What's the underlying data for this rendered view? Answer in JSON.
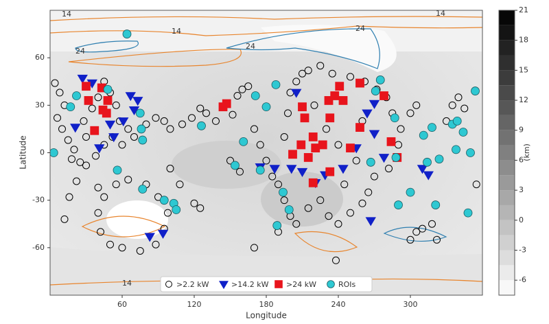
{
  "chart_data": {
    "type": "scatter",
    "xlabel": "Longitude",
    "ylabel": "Latitude",
    "xlim": [
      0,
      360
    ],
    "ylim": [
      -90,
      90
    ],
    "xticks": [
      60,
      120,
      180,
      240,
      300
    ],
    "yticks": [
      -60,
      -30,
      0,
      30,
      60
    ],
    "colorbar": {
      "label": "(km)",
      "lim": [
        -7.5,
        21
      ],
      "ticks": [
        -6,
        -3,
        0,
        3,
        6,
        9,
        12,
        15,
        18,
        21
      ]
    },
    "contours": [
      {
        "level": 14,
        "color": "#e8842c"
      },
      {
        "level": 24,
        "color": "#2f7fb0"
      }
    ],
    "legend": "lower center",
    "series": [
      {
        "name": ">2.2 kW",
        "color": "#000000",
        "marker": "circle",
        "filled": false,
        "x": [
          4,
          8,
          12,
          6,
          10,
          15,
          20,
          18,
          25,
          30,
          28,
          35,
          40,
          45,
          50,
          55,
          58,
          52,
          45,
          38,
          30,
          22,
          16,
          12,
          60,
          65,
          70,
          80,
          88,
          95,
          100,
          110,
          118,
          125,
          130,
          138,
          152,
          156,
          160,
          165,
          150,
          158,
          100,
          108,
          120,
          125,
          40,
          45,
          40,
          42,
          50,
          60,
          75,
          88,
          95,
          98,
          90,
          80,
          65,
          55,
          170,
          175,
          180,
          185,
          190,
          195,
          200,
          205,
          215,
          225,
          232,
          240,
          250,
          260,
          265,
          245,
          195,
          198,
          200,
          205,
          210,
          215,
          225,
          235,
          250,
          262,
          272,
          280,
          285,
          292,
          290,
          282,
          270,
          255,
          240,
          230,
          220,
          260,
          300,
          305,
          310,
          318,
          322,
          335,
          340,
          345,
          330,
          355,
          190,
          170,
          238,
          300,
          305
        ],
        "y": [
          44,
          38,
          30,
          22,
          15,
          8,
          2,
          -4,
          -6,
          10,
          20,
          28,
          35,
          45,
          38,
          30,
          20,
          10,
          5,
          -2,
          -8,
          -18,
          -28,
          -42,
          5,
          15,
          10,
          18,
          22,
          20,
          15,
          18,
          22,
          28,
          25,
          20,
          24,
          36,
          40,
          42,
          -5,
          -12,
          -10,
          -20,
          -32,
          -35,
          -22,
          -28,
          -38,
          -50,
          -58,
          -60,
          -62,
          -58,
          -48,
          -38,
          -28,
          -20,
          -17,
          -20,
          15,
          5,
          -5,
          -15,
          -20,
          -30,
          -40,
          -45,
          -35,
          -30,
          -40,
          -45,
          -38,
          -32,
          -25,
          -20,
          10,
          25,
          38,
          45,
          50,
          52,
          55,
          50,
          48,
          45,
          40,
          35,
          25,
          15,
          5,
          -10,
          -15,
          -5,
          5,
          15,
          30,
          20,
          -55,
          -50,
          -48,
          -45,
          -55,
          30,
          35,
          28,
          20,
          -20,
          -50,
          -60,
          -68,
          25,
          30
        ]
      },
      {
        "name": ">14.2 kW",
        "color": "#1020c8",
        "marker": "triangle",
        "filled": true,
        "x": [
          27,
          35,
          21,
          41,
          61,
          67,
          73,
          70,
          50,
          53,
          83,
          94,
          175,
          187,
          201,
          210,
          221,
          229,
          244,
          255,
          270,
          264,
          270,
          278,
          267,
          315,
          310,
          205
        ],
        "y": [
          47,
          44,
          16,
          3,
          20,
          36,
          33,
          27,
          18,
          10,
          -53,
          -51,
          -9,
          -10,
          -10,
          -12,
          -19,
          -14,
          -10,
          3,
          31,
          25,
          12,
          -3,
          -43,
          -14,
          -10,
          38
        ]
      },
      {
        "name": ">24 kW",
        "color": "#e8141c",
        "marker": "square",
        "filled": true,
        "x": [
          30,
          32,
          43,
          44,
          47,
          48,
          37,
          144,
          147,
          210,
          212,
          219,
          215,
          221,
          227,
          232,
          241,
          244,
          258,
          250,
          258,
          233,
          219,
          278,
          284,
          289,
          233,
          237,
          202,
          209
        ],
        "y": [
          42,
          33,
          41,
          27,
          25,
          33,
          14,
          29,
          31,
          29,
          22,
          10,
          -3,
          3,
          5,
          33,
          42,
          33,
          44,
          3,
          16,
          -12,
          -19,
          36,
          7,
          -3,
          22,
          36,
          -1,
          5
        ]
      },
      {
        "name": "ROIs",
        "color": "#2ec8d2",
        "marker": "circle",
        "filled": true,
        "x": [
          3,
          17,
          22,
          48,
          64,
          75,
          76,
          77,
          56,
          77,
          95,
          103,
          105,
          126,
          161,
          154,
          171,
          180,
          175,
          188,
          194,
          199,
          189,
          271,
          287,
          267,
          288,
          300,
          290,
          311,
          314,
          324,
          321,
          318,
          335,
          339,
          354,
          348,
          338,
          350,
          344,
          275
        ],
        "y": [
          0,
          29,
          36,
          40,
          75,
          25,
          15,
          8,
          -11,
          -23,
          -30,
          -32,
          -36,
          17,
          7,
          -8,
          36,
          29,
          -11,
          43,
          -25,
          -36,
          -46,
          39,
          22,
          -6,
          -3,
          -25,
          -33,
          11,
          -6,
          -4,
          -33,
          16,
          18,
          20,
          39,
          -38,
          2,
          0,
          13,
          46
        ]
      }
    ]
  }
}
